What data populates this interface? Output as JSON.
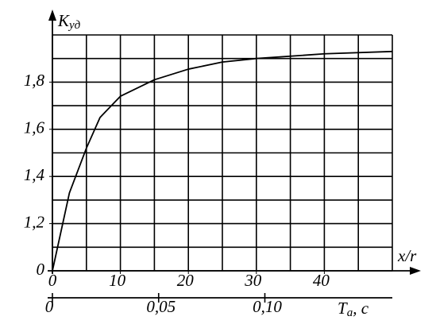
{
  "chart_data": {
    "type": "line",
    "ylabel": {
      "main": "K",
      "sub": "уд"
    },
    "xlabel": "x/r",
    "x2label": {
      "main": "T",
      "sub": "a",
      "suffix": ", c"
    },
    "x": [
      0,
      2.5,
      5,
      7,
      10,
      15,
      20,
      25,
      30,
      40,
      50
    ],
    "series": [
      {
        "color": "#000000",
        "values": [
          1.0,
          1.33,
          1.52,
          1.65,
          1.74,
          1.81,
          1.855,
          1.885,
          1.9,
          1.92,
          1.93
        ]
      }
    ],
    "xlim": [
      0,
      50
    ],
    "xticks": [
      0,
      10,
      20,
      30,
      40
    ],
    "ylim": [
      1.0,
      2.0
    ],
    "yticks": [
      {
        "value": 1.0,
        "label": "0"
      },
      {
        "value": 1.2,
        "label": "1,2"
      },
      {
        "value": 1.4,
        "label": "1,4"
      },
      {
        "value": 1.6,
        "label": "1,6"
      },
      {
        "value": 1.8,
        "label": "1,8"
      }
    ],
    "xgrid": [
      0,
      5,
      10,
      15,
      20,
      25,
      30,
      35,
      40,
      45,
      50
    ],
    "ygrid": [
      1.0,
      1.1,
      1.2,
      1.3,
      1.4,
      1.5,
      1.6,
      1.7,
      1.8,
      1.9,
      2.0
    ],
    "x2lim": [
      0,
      0.16
    ],
    "x2ticks": [
      {
        "value": 0,
        "label": "0"
      },
      {
        "value": 0.05,
        "label": "0,05"
      },
      {
        "value": 0.1,
        "label": "0,10"
      }
    ],
    "grid": true
  }
}
